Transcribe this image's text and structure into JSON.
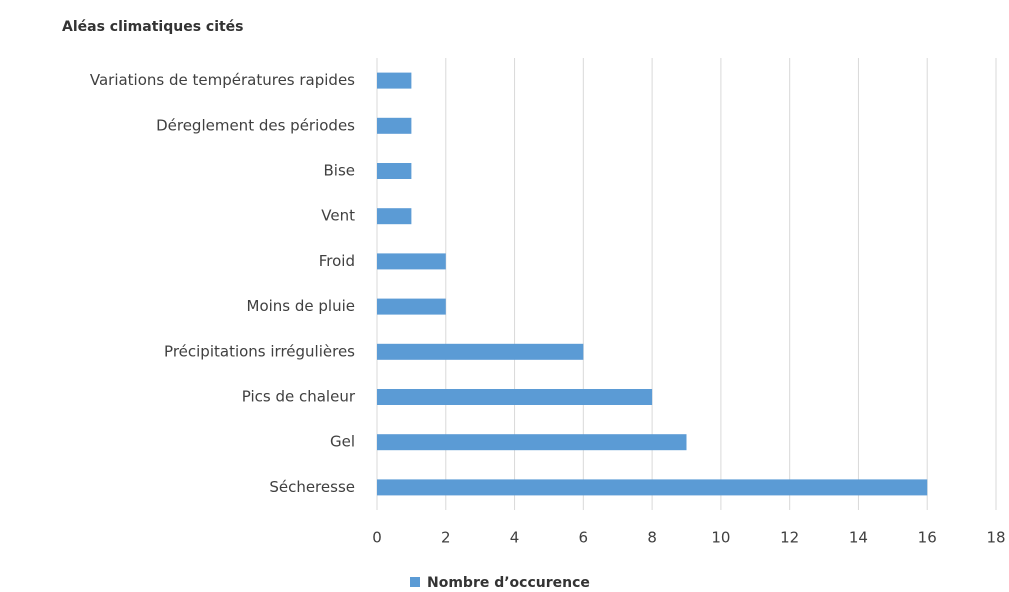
{
  "chart_data": {
    "type": "bar",
    "orientation": "horizontal",
    "title": "Aléas climatiques cités",
    "categories": [
      "Variations de températures rapides",
      "Déreglement des périodes",
      "Bise",
      "Vent",
      "Froid",
      "Moins de pluie",
      "Précipitations irrégulières",
      "Pics de chaleur",
      "Gel",
      "Sécheresse"
    ],
    "series": [
      {
        "name": "Nombre d’occurence",
        "color": "#5b9bd5",
        "values": [
          1,
          1,
          1,
          1,
          2,
          2,
          6,
          8,
          9,
          16
        ]
      }
    ],
    "xlim": [
      0,
      18
    ],
    "xticks": [
      0,
      2,
      4,
      6,
      8,
      10,
      12,
      14,
      16,
      18
    ],
    "grid": true,
    "legend": "bottom"
  }
}
